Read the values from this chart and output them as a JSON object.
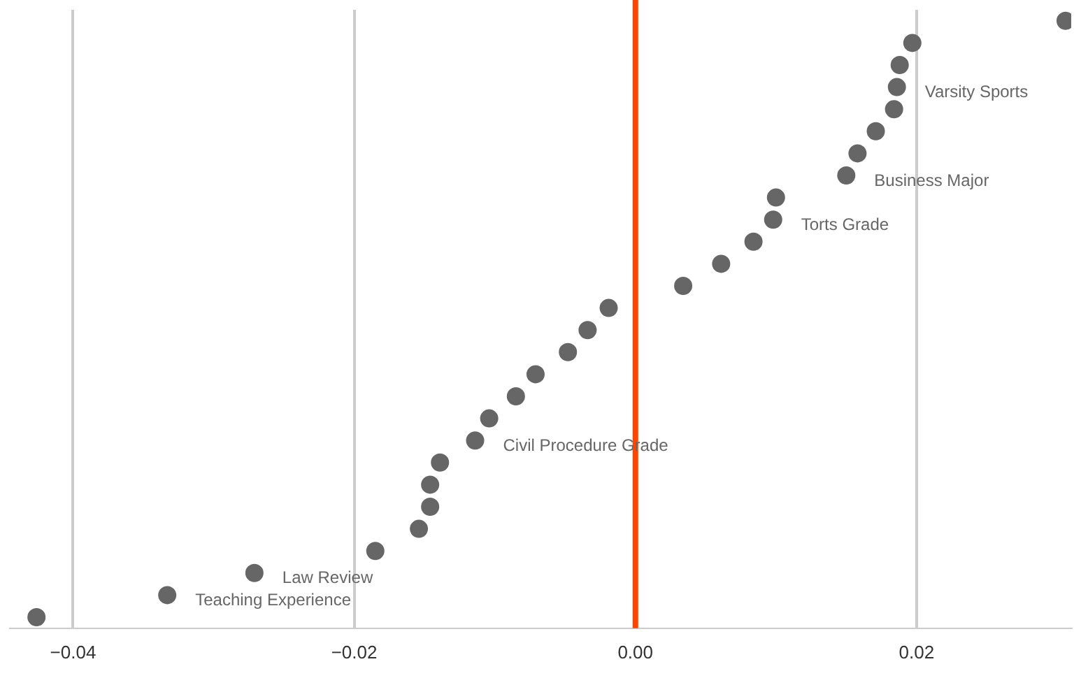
{
  "chart_data": {
    "type": "scatter",
    "orientation": "horizontal",
    "categories": [
      null,
      null,
      null,
      null,
      null,
      null,
      null,
      null,
      null,
      null,
      null,
      null,
      null,
      null,
      null,
      null,
      null,
      null,
      null,
      null,
      null,
      null,
      null,
      null,
      null,
      null,
      null,
      null
    ],
    "value_labels": [
      null,
      null,
      null,
      "Varsity Sports",
      null,
      null,
      null,
      "Business Major",
      null,
      "Torts Grade",
      null,
      null,
      null,
      null,
      null,
      null,
      null,
      null,
      null,
      "Civil Procedure Grade",
      null,
      null,
      null,
      null,
      null,
      "Law Review",
      "Teaching Experience",
      null
    ],
    "values": [
      0.0306,
      0.0197,
      0.0188,
      0.0186,
      0.0184,
      0.0171,
      0.0158,
      0.015,
      0.01,
      0.0098,
      0.0084,
      0.0061,
      0.0034,
      -0.0019,
      -0.0034,
      -0.0048,
      -0.0071,
      -0.0085,
      -0.0104,
      -0.0114,
      -0.0139,
      -0.0146,
      -0.0146,
      -0.0154,
      -0.0185,
      -0.0271,
      -0.0333,
      -0.0426
    ],
    "color": "#666666",
    "marker": "circle",
    "xlim": [
      -0.0445,
      0.031
    ],
    "xticks": [
      {
        "value": -0.04,
        "label": "−0.04"
      },
      {
        "value": -0.02,
        "label": "−0.02"
      },
      {
        "value": 0,
        "label": "0.00"
      },
      {
        "value": 0.02,
        "label": "0.02"
      }
    ],
    "grid": "x",
    "legend": false,
    "tick_labels": "x",
    "ref_lines": [
      {
        "axis": "x",
        "value": 0,
        "label": null,
        "color": "#ff4500"
      }
    ]
  }
}
